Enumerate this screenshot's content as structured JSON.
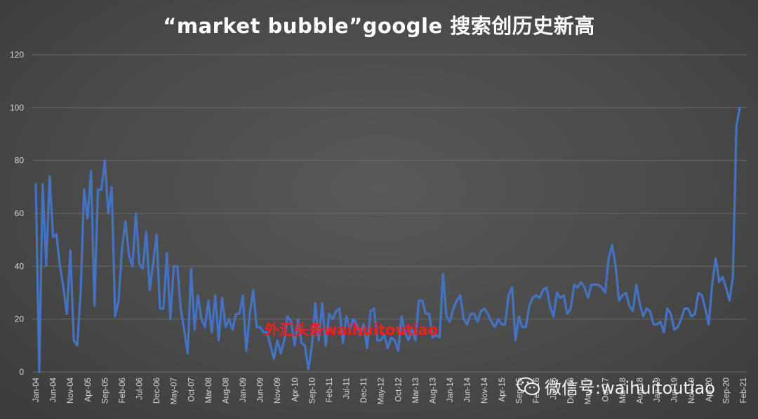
{
  "title": "“market bubble”google 搜索创历史新高",
  "watermark_red": "外汇头条waihuitoutiao",
  "watermark_wechat": "微信号:waihuitoutiao",
  "colors": {
    "line": "#4472c4",
    "grid": "#6a6a6a",
    "axis_text": "#d9d9d9",
    "watermark_red": "#ff1a1a"
  },
  "chart_data": {
    "type": "line",
    "title": "“market bubble”google 搜索创历史新高",
    "xlabel": "",
    "ylabel": "",
    "ylim": [
      0,
      120
    ],
    "yticks": [
      0,
      20,
      40,
      60,
      80,
      100,
      120
    ],
    "grid": true,
    "start": "2004-01",
    "end": "2021-02",
    "xtick_labels": [
      "Jan-04",
      "Jun-04",
      "Nov-04",
      "Apr-05",
      "Sep-05",
      "Feb-06",
      "Jul-06",
      "Dec-06",
      "May-07",
      "Oct-07",
      "Mar-08",
      "Aug-08",
      "Jan-09",
      "Jun-09",
      "Nov-09",
      "Apr-10",
      "Sep-10",
      "Feb-11",
      "Jul-11",
      "Dec-11",
      "May-12",
      "Oct-12",
      "Mar-13",
      "Aug-13",
      "Jan-14",
      "Jun-14",
      "Nov-14",
      "Apr-15",
      "Sep-15",
      "Feb-16",
      "Jul-16",
      "Dec-16",
      "May-17",
      "Oct-17",
      "Mar-18",
      "Aug-18",
      "Jan-19",
      "Jun-19",
      "Nov-19",
      "Apr-20",
      "Sep-20",
      "Feb-21"
    ],
    "series": [
      {
        "values": [
          71,
          0,
          71,
          40,
          74,
          51,
          52,
          40,
          32,
          22,
          46,
          12,
          10,
          30,
          69,
          58,
          76,
          25,
          69,
          69,
          80,
          60,
          70,
          21,
          27,
          47,
          57,
          44,
          40,
          60,
          41,
          39,
          53,
          31,
          41,
          52,
          24,
          24,
          45,
          20,
          40,
          40,
          24,
          16,
          7,
          39,
          16,
          29,
          20,
          17,
          27,
          15,
          29,
          12,
          28,
          17,
          20,
          16,
          22,
          22,
          29,
          8,
          22,
          31,
          17,
          17,
          15,
          15,
          10,
          5,
          12,
          7,
          12,
          21,
          19,
          10,
          20,
          11,
          10,
          1,
          10,
          26,
          12,
          26,
          10,
          22,
          20,
          23,
          24,
          11,
          21,
          16,
          20,
          18,
          14,
          18,
          9,
          23,
          24,
          12,
          12,
          14,
          9,
          13,
          12,
          8,
          21,
          15,
          12,
          16,
          12,
          27,
          27,
          22,
          22,
          13,
          14,
          13,
          37,
          21,
          19,
          24,
          27,
          29,
          20,
          18,
          22,
          22,
          19,
          23,
          24,
          22,
          19,
          17,
          20,
          18,
          18,
          29,
          32,
          12,
          21,
          17,
          17,
          25,
          28,
          29,
          28,
          31,
          32,
          25,
          21,
          30,
          28,
          29,
          22,
          24,
          33,
          32,
          34,
          32,
          28,
          33,
          33,
          33,
          32,
          30,
          43,
          48,
          40,
          27,
          29,
          30,
          25,
          23,
          33,
          26,
          21,
          24,
          23,
          18,
          18,
          19,
          15,
          24,
          22,
          16,
          17,
          20,
          24,
          24,
          21,
          22,
          30,
          29,
          24,
          18,
          33,
          43,
          34,
          36,
          32,
          27,
          36,
          93,
          100
        ]
      }
    ]
  }
}
